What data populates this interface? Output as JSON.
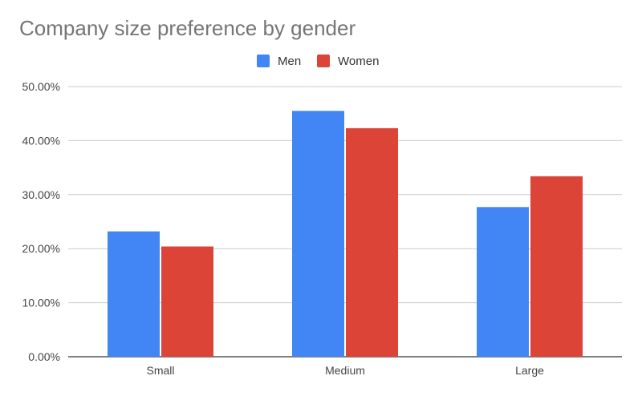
{
  "chart_data": {
    "type": "bar",
    "title": "Company size preference by gender",
    "categories": [
      "Small",
      "Medium",
      "Large"
    ],
    "series": [
      {
        "name": "Men",
        "color": "#4285F4",
        "values": [
          23.2,
          45.5,
          27.7
        ]
      },
      {
        "name": "Women",
        "color": "#DB4437",
        "values": [
          20.4,
          42.3,
          33.4
        ]
      }
    ],
    "ylim": [
      0,
      50
    ],
    "yticks": [
      "0.00%",
      "10.00%",
      "20.00%",
      "30.00%",
      "40.00%",
      "50.00%"
    ],
    "xlabel": "",
    "ylabel": "",
    "grid": true,
    "legend_position": "top-center"
  }
}
